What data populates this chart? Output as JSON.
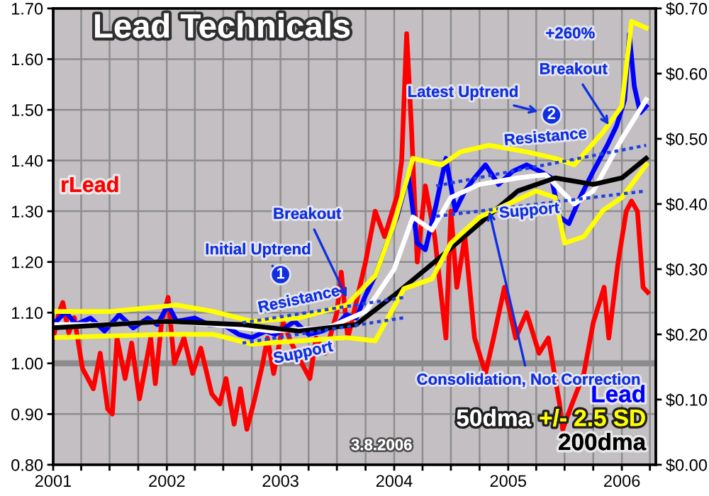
{
  "chart_data": {
    "type": "line",
    "title": "Lead Technicals",
    "xlim": [
      "2001-01-01",
      "2006-04-20"
    ],
    "xticks": [
      {
        "value": "2001-01-01",
        "label": "2001"
      },
      {
        "value": "2001-04-01",
        "label": null
      },
      {
        "value": "2001-07-01",
        "label": null
      },
      {
        "value": "2001-10-01",
        "label": null
      },
      {
        "value": "2002-01-01",
        "label": "2002"
      },
      {
        "value": "2002-04-01",
        "label": null
      },
      {
        "value": "2002-07-01",
        "label": null
      },
      {
        "value": "2002-10-01",
        "label": null
      },
      {
        "value": "2003-01-01",
        "label": "2003"
      },
      {
        "value": "2003-04-01",
        "label": null
      },
      {
        "value": "2003-07-01",
        "label": null
      },
      {
        "value": "2003-10-01",
        "label": null
      },
      {
        "value": "2004-01-01",
        "label": "2004"
      },
      {
        "value": "2004-04-01",
        "label": null
      },
      {
        "value": "2004-07-01",
        "label": null
      },
      {
        "value": "2004-10-01",
        "label": null
      },
      {
        "value": "2005-01-01",
        "label": "2005"
      },
      {
        "value": "2005-04-01",
        "label": null
      },
      {
        "value": "2005-07-01",
        "label": null
      },
      {
        "value": "2005-10-01",
        "label": null
      },
      {
        "value": "2006-01-01",
        "label": "2006"
      },
      {
        "value": "2006-04-01",
        "label": null
      }
    ],
    "ylim": [
      0.8,
      1.7
    ],
    "yticks": [
      {
        "value": 0.8,
        "label": "0.80"
      },
      {
        "value": 0.9,
        "label": "0.90"
      },
      {
        "value": 1.0,
        "label": "1.00"
      },
      {
        "value": 1.1,
        "label": "1.10"
      },
      {
        "value": 1.2,
        "label": "1.20"
      },
      {
        "value": 1.3,
        "label": "1.30"
      },
      {
        "value": 1.4,
        "label": "1.40"
      },
      {
        "value": 1.5,
        "label": "1.50"
      },
      {
        "value": 1.6,
        "label": "1.60"
      },
      {
        "value": 1.7,
        "label": "1.70"
      }
    ],
    "y2lim": [
      0.0,
      0.7
    ],
    "y2ticks": [
      {
        "value": 0.0,
        "label": "$0.00"
      },
      {
        "value": 0.1,
        "label": "$0.10"
      },
      {
        "value": 0.2,
        "label": "$0.20"
      },
      {
        "value": 0.3,
        "label": "$0.30"
      },
      {
        "value": 0.4,
        "label": "$0.40"
      },
      {
        "value": 0.5,
        "label": "$0.50"
      },
      {
        "value": 0.6,
        "label": "$0.60"
      },
      {
        "value": 0.7,
        "label": "$0.70"
      }
    ],
    "grid": true,
    "legend": "bottom right",
    "ref_lines": [
      {
        "axis": "y",
        "value": 1.0,
        "color": "#8c8c8c"
      }
    ],
    "series": [
      {
        "name": "rLead",
        "type": "line",
        "axis": "y",
        "color": "#ff0000",
        "x": [
          "2001-01-01",
          "2001-01-20",
          "2001-02-01",
          "2001-02-20",
          "2001-03-10",
          "2001-04-05",
          "2001-05-10",
          "2001-06-01",
          "2001-06-25",
          "2001-07-10",
          "2001-07-25",
          "2001-08-20",
          "2001-09-10",
          "2001-10-05",
          "2001-11-10",
          "2001-11-25",
          "2001-12-15",
          "2002-01-05",
          "2002-01-25",
          "2002-02-25",
          "2002-03-25",
          "2002-04-20",
          "2002-05-25",
          "2002-06-20",
          "2002-07-10",
          "2002-08-05",
          "2002-08-25",
          "2002-09-15",
          "2002-10-10",
          "2002-11-05",
          "2002-11-20",
          "2002-12-10",
          "2003-01-10",
          "2003-02-05",
          "2003-03-10",
          "2003-04-05",
          "2003-04-25",
          "2003-05-25",
          "2003-07-01",
          "2003-07-15",
          "2003-08-05",
          "2003-09-01",
          "2003-10-01",
          "2003-11-01",
          "2003-12-01",
          "2004-01-10",
          "2004-01-25",
          "2004-02-10",
          "2004-02-25",
          "2004-03-15",
          "2004-04-10",
          "2004-05-10",
          "2004-06-15",
          "2004-07-01",
          "2004-07-20",
          "2004-08-15",
          "2004-09-15",
          "2004-10-20",
          "2004-11-15",
          "2004-12-20",
          "2005-01-25",
          "2005-03-01",
          "2005-04-10",
          "2005-05-10",
          "2005-06-15",
          "2005-06-25",
          "2005-07-25",
          "2005-09-01",
          "2005-10-01",
          "2005-11-05",
          "2005-11-20",
          "2005-12-20",
          "2006-01-15",
          "2006-02-01",
          "2006-02-20",
          "2006-03-10",
          "2006-03-25"
        ],
        "values": [
          1.05,
          1.1,
          1.12,
          1.06,
          1.09,
          0.99,
          0.95,
          1.02,
          0.91,
          0.9,
          1.05,
          0.97,
          1.04,
          0.93,
          1.05,
          0.96,
          1.08,
          1.13,
          1.0,
          1.05,
          0.98,
          1.03,
          0.94,
          0.92,
          0.97,
          0.88,
          0.95,
          0.87,
          0.93,
          1.0,
          1.05,
          0.98,
          1.08,
          1.04,
          1.0,
          0.97,
          1.05,
          1.02,
          1.1,
          1.18,
          1.05,
          1.12,
          1.2,
          1.3,
          1.25,
          1.33,
          1.4,
          1.65,
          1.47,
          1.2,
          1.35,
          1.25,
          1.05,
          1.3,
          1.15,
          1.25,
          1.05,
          0.98,
          1.05,
          1.15,
          1.05,
          1.1,
          1.02,
          1.05,
          0.92,
          0.87,
          0.92,
          0.98,
          1.08,
          1.15,
          1.05,
          1.2,
          1.3,
          1.32,
          1.3,
          1.15,
          1.14
        ]
      },
      {
        "name": "Lead",
        "type": "line",
        "axis": "y2",
        "color": "#0000ff",
        "x": [
          "2001-01-01",
          "2001-02-10",
          "2001-03-15",
          "2001-05-01",
          "2001-06-15",
          "2001-08-01",
          "2001-09-15",
          "2001-11-01",
          "2001-12-01",
          "2002-01-05",
          "2002-02-01",
          "2002-04-01",
          "2002-05-15",
          "2002-07-01",
          "2002-08-20",
          "2002-10-01",
          "2002-11-15",
          "2002-12-15",
          "2003-01-15",
          "2003-02-15",
          "2003-04-01",
          "2003-05-15",
          "2003-07-01",
          "2003-08-01",
          "2003-09-01",
          "2003-10-01",
          "2003-11-01",
          "2003-12-01",
          "2004-01-10",
          "2004-02-15",
          "2004-03-15",
          "2004-04-10",
          "2004-05-15",
          "2004-06-15",
          "2004-07-15",
          "2004-08-15",
          "2004-09-15",
          "2004-10-20",
          "2004-12-01",
          "2005-01-15",
          "2005-03-01",
          "2005-04-15",
          "2005-05-20",
          "2005-06-15",
          "2005-07-15",
          "2005-08-20",
          "2005-10-01",
          "2005-11-15",
          "2005-12-15",
          "2006-01-10",
          "2006-01-25",
          "2006-02-10",
          "2006-03-01",
          "2006-03-20"
        ],
        "values": [
          0.215,
          0.235,
          0.215,
          0.225,
          0.205,
          0.23,
          0.21,
          0.225,
          0.215,
          0.245,
          0.22,
          0.225,
          0.215,
          0.215,
          0.2,
          0.195,
          0.205,
          0.2,
          0.21,
          0.22,
          0.2,
          0.205,
          0.215,
          0.23,
          0.225,
          0.26,
          0.29,
          0.33,
          0.38,
          0.445,
          0.34,
          0.33,
          0.4,
          0.47,
          0.39,
          0.42,
          0.44,
          0.46,
          0.43,
          0.45,
          0.46,
          0.45,
          0.44,
          0.38,
          0.37,
          0.41,
          0.45,
          0.49,
          0.52,
          0.56,
          0.66,
          0.58,
          0.54,
          0.55
        ]
      },
      {
        "name": "50dma",
        "type": "line",
        "axis": "y2",
        "color": "#ffffff",
        "x": [
          "2001-01-01",
          "2001-07-01",
          "2002-01-01",
          "2002-06-01",
          "2002-12-01",
          "2003-06-01",
          "2003-10-01",
          "2004-01-01",
          "2004-03-01",
          "2004-05-01",
          "2004-07-01",
          "2004-10-01",
          "2005-02-01",
          "2005-05-01",
          "2005-08-01",
          "2005-10-01",
          "2006-01-01",
          "2006-03-20"
        ],
        "values": [
          0.215,
          0.215,
          0.22,
          0.215,
          0.205,
          0.21,
          0.235,
          0.3,
          0.38,
          0.36,
          0.41,
          0.43,
          0.44,
          0.445,
          0.4,
          0.42,
          0.5,
          0.56
        ]
      },
      {
        "name": "+/- 2.5 SD",
        "type": "line",
        "axis": "y2",
        "color": "#ffff00",
        "x": [
          "2001-01-01",
          "2001-07-01",
          "2002-02-01",
          "2002-06-01",
          "2002-10-01",
          "2003-03-01",
          "2003-08-01",
          "2003-11-01",
          "2004-01-01",
          "2004-03-01",
          "2004-06-01",
          "2004-08-01",
          "2004-11-01",
          "2005-03-01",
          "2005-06-01",
          "2005-08-01",
          "2005-11-01",
          "2006-01-01",
          "2006-02-01",
          "2006-03-20"
        ],
        "values": [
          0.235,
          0.235,
          0.245,
          0.235,
          0.22,
          0.225,
          0.245,
          0.29,
          0.37,
          0.47,
          0.46,
          0.48,
          0.49,
          0.48,
          0.47,
          0.46,
          0.51,
          0.55,
          0.68,
          0.67
        ]
      },
      {
        "name": "200dma",
        "type": "line",
        "axis": "y2",
        "color": "#000000",
        "x": [
          "2001-01-01",
          "2002-01-01",
          "2002-09-01",
          "2003-03-01",
          "2003-09-01",
          "2004-01-01",
          "2004-06-01",
          "2004-10-01",
          "2005-02-01",
          "2005-06-01",
          "2005-10-01",
          "2006-01-01",
          "2006-03-20"
        ],
        "values": [
          0.21,
          0.22,
          0.215,
          0.205,
          0.215,
          0.26,
          0.32,
          0.37,
          0.42,
          0.44,
          0.43,
          0.44,
          0.47
        ]
      },
      {
        "type": "line",
        "axis": "y2",
        "color": "#ffff00",
        "x": [
          "2001-01-01",
          "2002-01-01",
          "2002-06-01",
          "2002-10-01",
          "2003-03-01",
          "2003-08-01",
          "2003-11-01",
          "2004-02-01",
          "2004-05-01",
          "2004-07-01",
          "2004-10-01",
          "2005-01-01",
          "2005-04-01",
          "2005-06-01",
          "2005-07-01",
          "2005-09-01",
          "2005-11-01",
          "2006-01-01",
          "2006-03-20"
        ],
        "values": [
          0.195,
          0.2,
          0.2,
          0.185,
          0.19,
          0.195,
          0.19,
          0.27,
          0.285,
          0.34,
          0.38,
          0.4,
          0.42,
          0.41,
          0.34,
          0.35,
          0.39,
          0.41,
          0.46
        ]
      },
      {
        "type": "line",
        "axis": "y",
        "color": "#2040e0",
        "line_style": "dotted",
        "x": [
          "2002-09-01",
          "2004-02-01"
        ],
        "values": [
          1.08,
          1.13
        ]
      },
      {
        "type": "line",
        "axis": "y",
        "color": "#2040e0",
        "line_style": "dotted",
        "x": [
          "2002-09-01",
          "2004-02-01"
        ],
        "values": [
          1.04,
          1.09
        ]
      },
      {
        "type": "line",
        "axis": "y",
        "color": "#2040e0",
        "line_style": "dotted",
        "x": [
          "2004-05-15",
          "2006-03-20"
        ],
        "values": [
          1.35,
          1.43
        ]
      },
      {
        "type": "line",
        "axis": "y",
        "color": "#2040e0",
        "line_style": "dotted",
        "x": [
          "2004-05-15",
          "2006-03-20"
        ],
        "values": [
          1.29,
          1.34
        ]
      }
    ],
    "annotations": [
      "Initial Uptrend",
      {
        "text": "1",
        "x": "2003-01-01",
        "y": 1.175
      },
      "Resistance",
      {
        "text": "Support",
        "x": "2003-03-15",
        "y": 1.02
      },
      {
        "text": "Breakout",
        "x": "2003-08-01",
        "y": 1.13
      },
      "Latest Uptrend",
      {
        "text": "2",
        "x": "2005-05-20",
        "y": 1.49
      },
      "Resistance",
      {
        "text": "Support",
        "x": "2005-03-10",
        "y": 1.3
      },
      {
        "text": "Breakout",
        "x": "2005-11-20",
        "y": 1.47
      },
      {
        "text": "+260%",
        "x": "2006-01-25",
        "y": 1.649
      },
      {
        "text": "Consolidation, Not Correction",
        "x": "2004-11-01",
        "y": 1.3
      },
      "3.8.2006"
    ]
  }
}
